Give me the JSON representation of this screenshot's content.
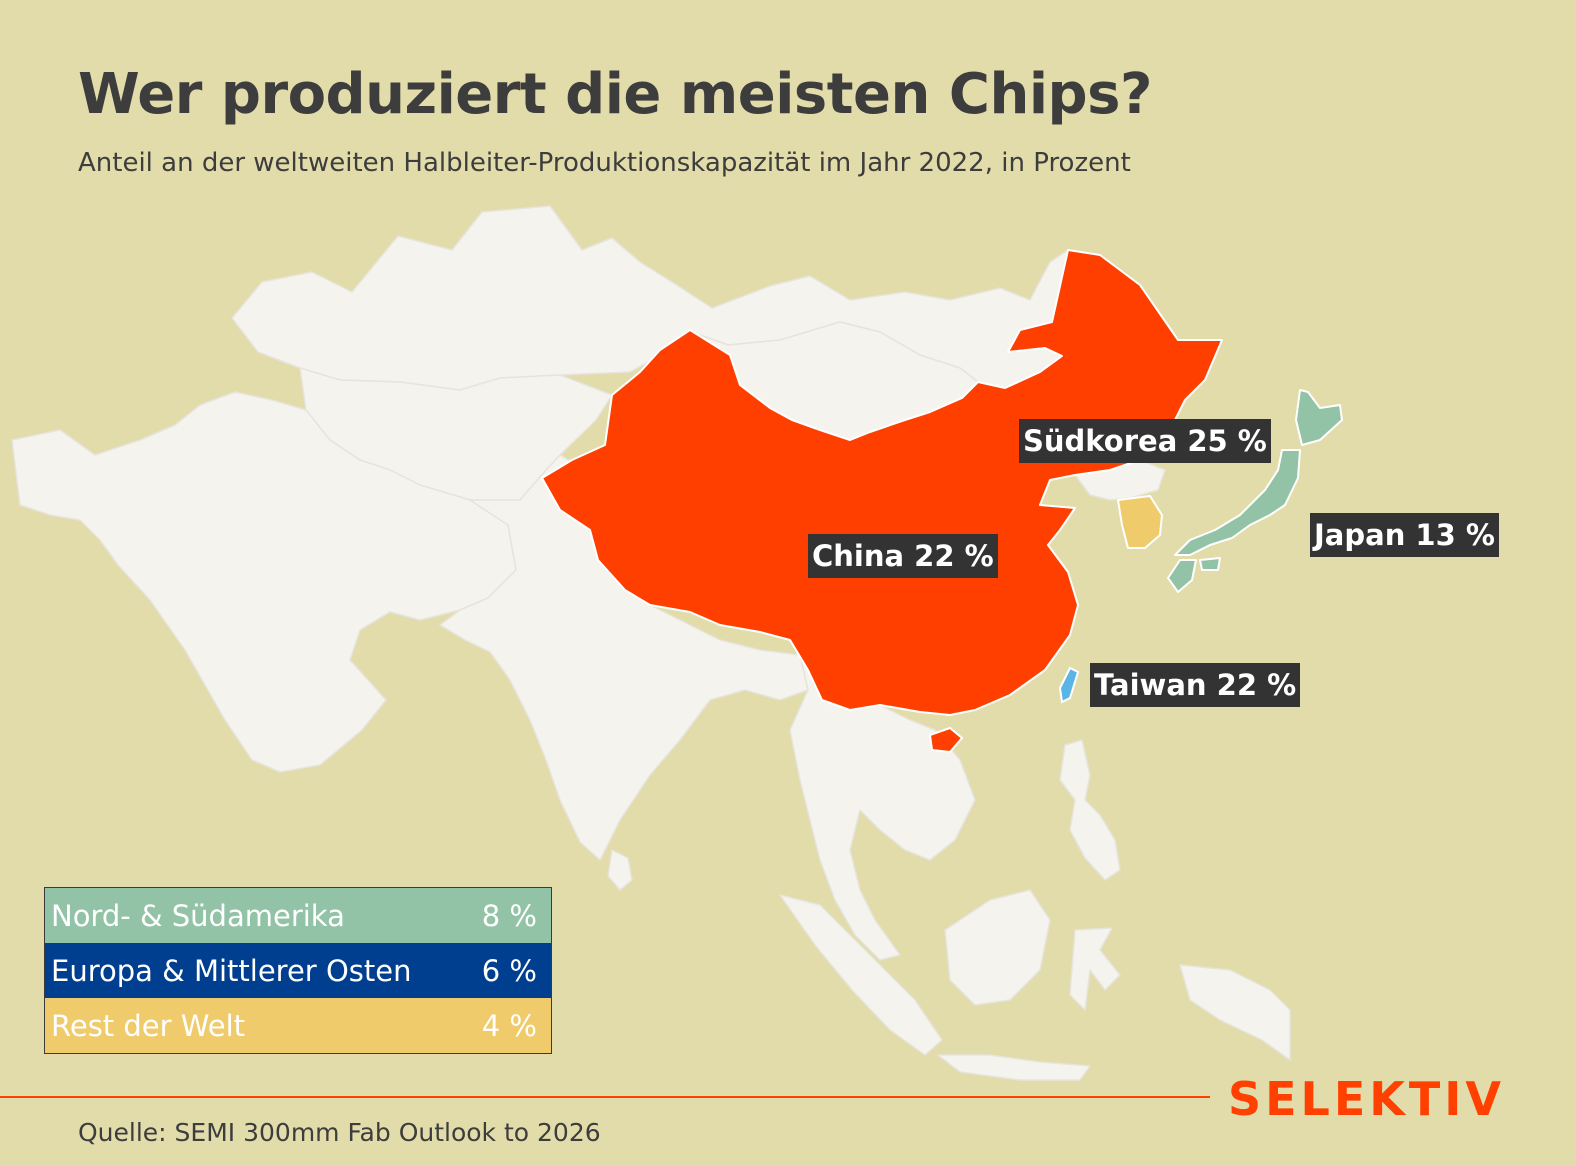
{
  "header": {
    "title": "Wer produziert die meisten Chips?",
    "subtitle": "Anteil an der weltweiten Halbleiter-Produktionskapazität im Jahr 2022, in Prozent"
  },
  "map": {
    "regions": [
      {
        "name": "China",
        "label": "China 22 %",
        "share_percent": 22,
        "color": "#ff3f00"
      },
      {
        "name": "Südkorea",
        "label": "Südkorea 25 %",
        "share_percent": 25,
        "color": "#f0cb6c"
      },
      {
        "name": "Japan",
        "label": "Japan 13 %",
        "share_percent": 13,
        "color": "#93c3a6"
      },
      {
        "name": "Taiwan",
        "label": "Taiwan 22 %",
        "share_percent": 22,
        "color": "#5ab4e5"
      }
    ],
    "land_color": "#f4f3ee",
    "sea_color": "#e2dcaa",
    "border_color": "#e6e4dc"
  },
  "legend": {
    "items": [
      {
        "name": "Nord- & Südamerika",
        "value": "8 %",
        "share_percent": 8,
        "color": "#93c3a6"
      },
      {
        "name": "Europa & Mittlerer Osten",
        "value": "6 %",
        "share_percent": 6,
        "color": "#003f8f"
      },
      {
        "name": "Rest der Welt",
        "value": "4 %",
        "share_percent": 4,
        "color": "#f0cb6c"
      }
    ]
  },
  "footer": {
    "source": "Quelle: SEMI 300mm Fab Outlook to 2026",
    "brand": "SELEKTIV",
    "accent_color": "#ff4000"
  }
}
